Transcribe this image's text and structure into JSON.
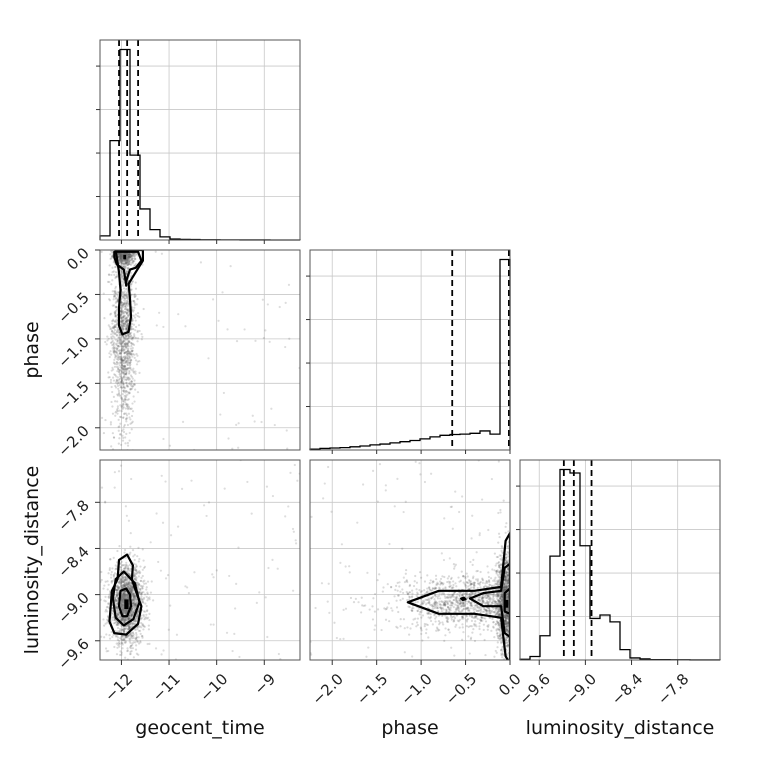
{
  "chart_data": {
    "type": "corner",
    "parameters": [
      "geocent_time",
      "phase",
      "luminosity_distance"
    ],
    "grid": true,
    "ranges": {
      "geocent_time": [
        -12.45,
        -8.25
      ],
      "phase": [
        -2.25,
        0.0
      ],
      "luminosity_distance": [
        -9.85,
        -7.25
      ]
    },
    "ticks": {
      "geocent_time": [
        -12,
        -11,
        -10,
        -9
      ],
      "phase": [
        -2.0,
        -1.5,
        -1.0,
        -0.5,
        0.0
      ],
      "luminosity_distance": [
        -9.6,
        -9.0,
        -8.4,
        -7.8
      ]
    },
    "tick_labels": {
      "geocent_time": [
        "−12",
        "−11",
        "−10",
        "−9"
      ],
      "phase_x": [
        "−2.0",
        "−1.5",
        "−1.0",
        "−0.5",
        "0.0"
      ],
      "phase_y": [
        "−2.0",
        "−1.5",
        "−1.0",
        "−0.5",
        "0.0"
      ],
      "luminosity_distance": [
        "−9.6",
        "−9.0",
        "−8.4",
        "−7.8"
      ]
    },
    "histograms": {
      "geocent_time": {
        "bin_edges": [
          -12.45,
          -12.24,
          -12.03,
          -11.82,
          -11.61,
          -11.4,
          -11.19,
          -10.98,
          -10.77,
          -10.56,
          -10.35,
          -10.14,
          -9.93,
          -9.72,
          -9.51,
          -9.3,
          -9.09,
          -8.88,
          -8.67,
          -8.46,
          -8.25
        ],
        "counts": [
          2,
          48,
          92,
          41,
          15,
          5,
          1.5,
          0.5,
          0.3,
          0.2,
          0.1,
          0.1,
          0.05,
          0.05,
          0.02,
          0.02,
          0.02,
          0.01,
          0.01,
          0.01
        ],
        "quantiles": [
          -12.05,
          -11.88,
          -11.65
        ]
      },
      "phase": {
        "bin_edges": [
          -2.25,
          -2.1375,
          -2.025,
          -1.9125,
          -1.8,
          -1.6875,
          -1.575,
          -1.4625,
          -1.35,
          -1.2375,
          -1.125,
          -1.0125,
          -0.9,
          -0.7875,
          -0.675,
          -0.5625,
          -0.45,
          -0.3375,
          -0.225,
          -0.1125,
          0.0
        ],
        "counts": [
          0.2,
          0.4,
          0.5,
          0.6,
          0.8,
          1.0,
          1.3,
          1.5,
          1.8,
          2.1,
          2.4,
          2.8,
          3.3,
          3.7,
          3.9,
          4.0,
          4.2,
          4.8,
          4.0,
          48
        ],
        "quantiles": [
          -0.65,
          0.0,
          0.0
        ]
      },
      "luminosity_distance": {
        "bin_edges": [
          -9.85,
          -9.72,
          -9.59,
          -9.46,
          -9.33,
          -9.2,
          -9.07,
          -8.94,
          -8.81,
          -8.68,
          -8.55,
          -8.42,
          -8.29,
          -8.16,
          -8.03,
          -7.9,
          -7.77,
          -7.64,
          -7.51,
          -7.38,
          -7.25
        ],
        "counts": [
          0.2,
          1,
          7,
          30,
          55,
          54,
          33,
          12,
          13,
          11,
          3,
          0.6,
          0.3,
          0.1,
          0.1,
          0.05,
          0.05,
          0.02,
          0.02,
          0.02
        ],
        "quantiles": [
          -9.28,
          -9.15,
          -8.92
        ]
      }
    },
    "scatter_2d": [
      {
        "x": "geocent_time",
        "y": "phase",
        "clusters": [
          {
            "cx": -11.93,
            "cy": -0.05,
            "sx": 0.12,
            "sy": 0.06,
            "n": 500
          },
          {
            "cx": -11.95,
            "cy": -0.9,
            "sx": 0.13,
            "sy": 0.55,
            "n": 1300
          }
        ],
        "outliers": 60,
        "dense_blocks": [
          {
            "x": [
              -12.0,
              -11.87
            ],
            "y": [
              -0.13,
              -0.03
            ]
          }
        ],
        "contours": [
          [
            [
              -12.15,
              -0.02
            ],
            [
              -11.65,
              -0.02
            ],
            [
              -11.58,
              -0.12
            ],
            [
              -11.7,
              -0.2
            ],
            [
              -11.82,
              -0.22
            ],
            [
              -11.9,
              -0.35
            ],
            [
              -11.9,
              -0.4
            ],
            [
              -11.92,
              -0.32
            ],
            [
              -11.95,
              -0.22
            ],
            [
              -12.1,
              -0.16
            ],
            [
              -12.15,
              -0.08
            ]
          ],
          [
            [
              -12.12,
              0.0
            ],
            [
              -12.05,
              -0.25
            ],
            [
              -12.02,
              -0.45
            ],
            [
              -12.05,
              -0.65
            ],
            [
              -12.05,
              -0.85
            ],
            [
              -11.98,
              -0.95
            ],
            [
              -11.85,
              -0.92
            ],
            [
              -11.8,
              -0.75
            ],
            [
              -11.82,
              -0.55
            ],
            [
              -11.85,
              -0.38
            ],
            [
              -11.7,
              -0.25
            ],
            [
              -11.55,
              -0.12
            ],
            [
              -11.55,
              0.0
            ]
          ]
        ]
      },
      {
        "x": "geocent_time",
        "y": "luminosity_distance",
        "clusters": [
          {
            "cx": -11.88,
            "cy": -9.12,
            "sx": 0.18,
            "sy": 0.25,
            "n": 1700
          }
        ],
        "outliers": 90,
        "dense_blocks": [
          {
            "x": [
              -12.0,
              -11.8
            ],
            "y": [
              -9.25,
              -9.0
            ]
          }
        ],
        "contours": [
          [
            [
              -12.02,
              -8.95
            ],
            [
              -11.9,
              -8.92
            ],
            [
              -11.82,
              -9.0
            ],
            [
              -11.8,
              -9.15
            ],
            [
              -11.88,
              -9.28
            ],
            [
              -11.98,
              -9.28
            ],
            [
              -12.05,
              -9.15
            ]
          ],
          [
            [
              -12.12,
              -8.8
            ],
            [
              -11.95,
              -8.7
            ],
            [
              -11.72,
              -8.85
            ],
            [
              -11.62,
              -9.1
            ],
            [
              -11.75,
              -9.32
            ],
            [
              -11.95,
              -9.4
            ],
            [
              -12.12,
              -9.3
            ],
            [
              -12.18,
              -9.05
            ]
          ],
          [
            [
              -12.25,
              -9.35
            ],
            [
              -12.2,
              -8.95
            ],
            [
              -12.08,
              -8.8
            ],
            [
              -12.05,
              -8.55
            ],
            [
              -11.88,
              -8.48
            ],
            [
              -11.76,
              -8.62
            ],
            [
              -11.78,
              -8.8
            ],
            [
              -11.7,
              -8.95
            ],
            [
              -11.58,
              -9.15
            ],
            [
              -11.65,
              -9.38
            ],
            [
              -11.9,
              -9.52
            ],
            [
              -12.15,
              -9.5
            ]
          ]
        ]
      },
      {
        "x": "phase",
        "y": "luminosity_distance",
        "clusters": [
          {
            "cx": -0.35,
            "cy": -9.1,
            "sx": 0.45,
            "sy": 0.18,
            "n": 1500
          },
          {
            "cx": -0.05,
            "cy": -9.1,
            "sx": 0.05,
            "sy": 0.35,
            "n": 1200
          }
        ],
        "outliers": 100,
        "dense_blocks": [
          {
            "x": [
              -0.08,
              0.0
            ],
            "y": [
              -9.22,
              -9.02
            ]
          }
        ],
        "contours": [
          [
            [
              -1.15,
              -9.1
            ],
            [
              -0.8,
              -8.95
            ],
            [
              -0.4,
              -8.95
            ],
            [
              -0.1,
              -8.9
            ],
            [
              -0.05,
              -8.3
            ],
            [
              0.0,
              -8.2
            ],
            [
              0.0,
              -9.9
            ],
            [
              -0.05,
              -9.8
            ],
            [
              -0.1,
              -9.3
            ],
            [
              -0.4,
              -9.25
            ],
            [
              -0.8,
              -9.25
            ]
          ],
          [
            [
              -0.45,
              -9.05
            ],
            [
              -0.3,
              -8.98
            ],
            [
              -0.1,
              -8.95
            ],
            [
              -0.06,
              -8.65
            ],
            [
              0.0,
              -8.6
            ],
            [
              0.0,
              -9.55
            ],
            [
              -0.06,
              -9.5
            ],
            [
              -0.1,
              -9.15
            ],
            [
              -0.3,
              -9.15
            ]
          ],
          [
            [
              -0.06,
              -8.98
            ],
            [
              0.0,
              -8.92
            ],
            [
              0.0,
              -9.25
            ],
            [
              -0.06,
              -9.22
            ]
          ],
          [
            [
              -0.55,
              -9.05
            ],
            [
              -0.52,
              -9.04
            ],
            [
              -0.5,
              -9.06
            ],
            [
              -0.53,
              -9.07
            ]
          ]
        ]
      }
    ]
  }
}
